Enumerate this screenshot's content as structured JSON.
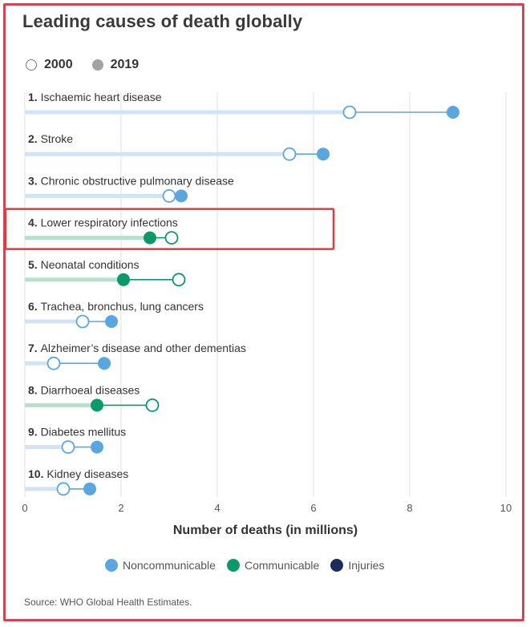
{
  "title": "Leading causes of death globally",
  "year_legend": [
    {
      "label": "2000",
      "style": "open"
    },
    {
      "label": "2019",
      "style": "filled"
    }
  ],
  "category_legend": [
    {
      "label": "Noncommunicable",
      "color": "#5aa7e0"
    },
    {
      "label": "Communicable",
      "color": "#0a9a6a"
    },
    {
      "label": "Injuries",
      "color": "#1d2a5c"
    }
  ],
  "source": "Source: WHO Global Health Estimates.",
  "highlight_color": "#e03a3a",
  "chart_data": {
    "type": "dumbbell",
    "title": "Leading causes of death globally",
    "xlabel": "Number of deaths (in millions)",
    "ylabel": "",
    "xlim": [
      0,
      10
    ],
    "xticks": [
      0,
      2,
      4,
      6,
      8,
      10
    ],
    "grid": true,
    "series_names": [
      "2000",
      "2019"
    ],
    "highlighted_rank": 4,
    "rows": [
      {
        "rank": "1.",
        "label": "Ischaemic heart disease",
        "category": "Noncommunicable",
        "v2000": 6.75,
        "v2019": 8.9
      },
      {
        "rank": "2.",
        "label": "Stroke",
        "category": "Noncommunicable",
        "v2000": 5.5,
        "v2019": 6.2
      },
      {
        "rank": "3.",
        "label": "Chronic obstructive pulmonary disease",
        "category": "Noncommunicable",
        "v2000": 3.0,
        "v2019": 3.25
      },
      {
        "rank": "4.",
        "label": "Lower respiratory infections",
        "category": "Communicable",
        "v2000": 3.05,
        "v2019": 2.6
      },
      {
        "rank": "5.",
        "label": "Neonatal conditions",
        "category": "Communicable",
        "v2000": 3.2,
        "v2019": 2.05
      },
      {
        "rank": "6.",
        "label": "Trachea, bronchus, lung cancers",
        "category": "Noncommunicable",
        "v2000": 1.2,
        "v2019": 1.8
      },
      {
        "rank": "7.",
        "label": "Alzheimer’s disease and other dementias",
        "category": "Noncommunicable",
        "v2000": 0.6,
        "v2019": 1.65
      },
      {
        "rank": "8.",
        "label": "Diarrhoeal diseases",
        "category": "Communicable",
        "v2000": 2.65,
        "v2019": 1.5
      },
      {
        "rank": "9.",
        "label": "Diabetes mellitus",
        "category": "Noncommunicable",
        "v2000": 0.9,
        "v2019": 1.5
      },
      {
        "rank": "10.",
        "label": "Kidney diseases",
        "category": "Noncommunicable",
        "v2000": 0.8,
        "v2019": 1.35
      }
    ]
  }
}
